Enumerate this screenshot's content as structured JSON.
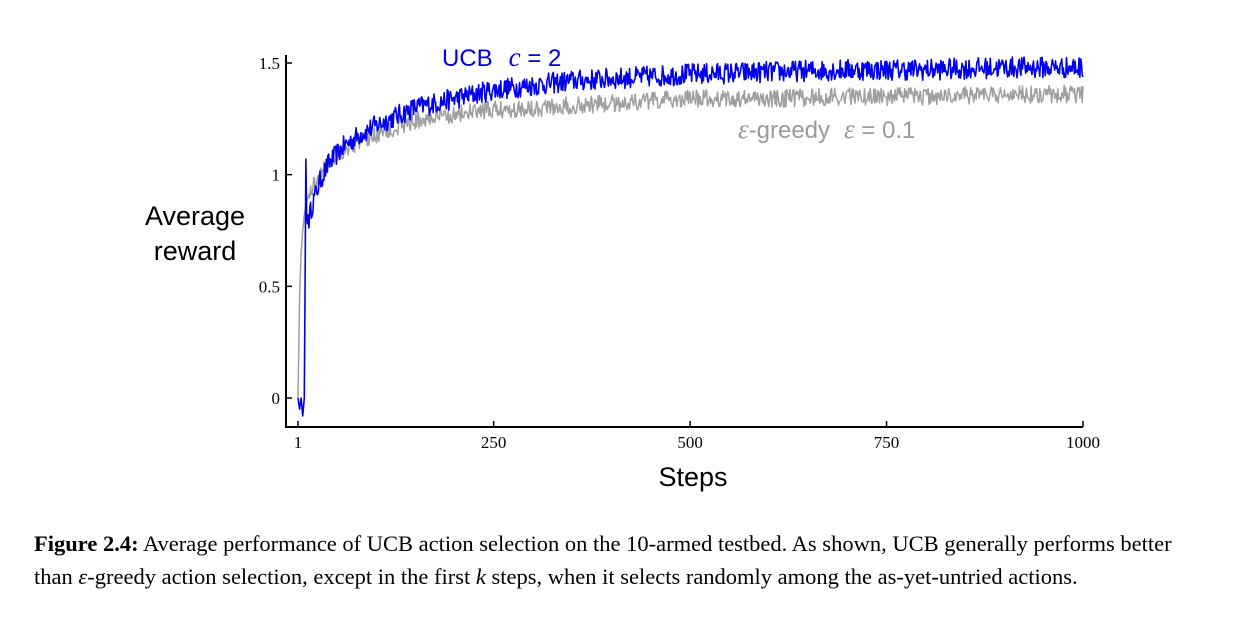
{
  "chart_data": {
    "type": "line",
    "xlabel": "Steps",
    "ylabel_line1": "Average",
    "ylabel_line2": "reward",
    "xlim": [
      1,
      1000
    ],
    "ylim": [
      -0.12,
      1.55
    ],
    "xticks": [
      1,
      250,
      500,
      750,
      1000
    ],
    "xtick_labels": [
      "1",
      "250",
      "500",
      "750",
      "1000"
    ],
    "yticks": [
      0,
      0.5,
      1,
      1.5
    ],
    "ytick_labels": [
      "0",
      "0.5",
      "1",
      "1.5"
    ],
    "series": [
      {
        "name": "UCB c = 2",
        "label_text": "UCB",
        "label_param_sym": "c",
        "label_param_val": " = 2",
        "color": "#0000ee",
        "noise": 0.03,
        "x": [
          1,
          3,
          5,
          7,
          9,
          10,
          11,
          12,
          13,
          14,
          15,
          18,
          22,
          30,
          40,
          60,
          80,
          100,
          150,
          200,
          250,
          300,
          350,
          400,
          500,
          600,
          700,
          800,
          900,
          1000
        ],
        "values": [
          0.0,
          -0.05,
          0.0,
          -0.08,
          0.0,
          0.5,
          1.07,
          0.82,
          0.78,
          0.82,
          0.8,
          0.85,
          0.9,
          0.98,
          1.05,
          1.13,
          1.18,
          1.22,
          1.3,
          1.34,
          1.38,
          1.4,
          1.42,
          1.43,
          1.45,
          1.46,
          1.47,
          1.47,
          1.48,
          1.48
        ]
      },
      {
        "name": "ε-greedy ε = 0.1",
        "label_sym": "ε",
        "label_text": "-greedy",
        "label_param_sym": "ε",
        "label_param_val": " = 0.1",
        "color": "#a0a0a0",
        "noise": 0.025,
        "x": [
          1,
          3,
          5,
          7,
          9,
          12,
          15,
          20,
          30,
          40,
          60,
          80,
          100,
          150,
          200,
          250,
          300,
          350,
          400,
          500,
          600,
          700,
          800,
          900,
          1000
        ],
        "values": [
          0.0,
          0.45,
          0.65,
          0.75,
          0.82,
          0.88,
          0.91,
          0.95,
          1.0,
          1.05,
          1.11,
          1.15,
          1.18,
          1.24,
          1.27,
          1.29,
          1.3,
          1.31,
          1.32,
          1.34,
          1.34,
          1.35,
          1.35,
          1.36,
          1.36
        ]
      }
    ]
  },
  "caption": {
    "label": "Figure 2.4:",
    "text_part1": " Average performance of UCB action selection on the 10-armed testbed. As shown, UCB generally performs better than ",
    "epsilon": "ε",
    "text_part2": "-greedy action selection, except in the first ",
    "k": "k",
    "text_part3": " steps, when it selects randomly among the as-yet-untried actions."
  }
}
